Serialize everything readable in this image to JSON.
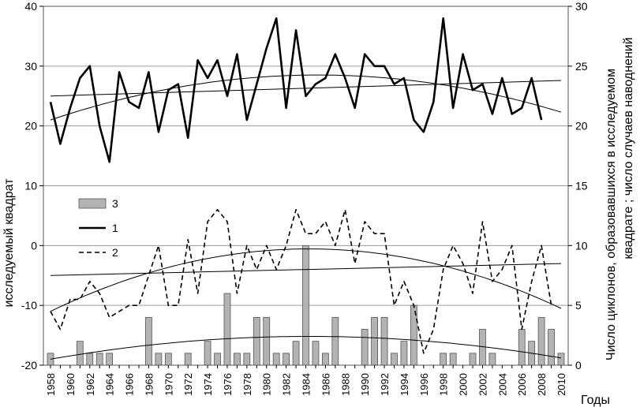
{
  "chart_data": {
    "type": "bar+line",
    "x": [
      1958,
      1959,
      1960,
      1961,
      1962,
      1963,
      1964,
      1965,
      1966,
      1967,
      1968,
      1969,
      1970,
      1971,
      1972,
      1973,
      1974,
      1975,
      1976,
      1977,
      1978,
      1979,
      1980,
      1981,
      1982,
      1983,
      1984,
      1985,
      1986,
      1987,
      1988,
      1989,
      1990,
      1991,
      1992,
      1993,
      1994,
      1995,
      1996,
      1997,
      1998,
      1999,
      2000,
      2001,
      2002,
      2003,
      2004,
      2005,
      2006,
      2007,
      2008,
      2009,
      2010
    ],
    "x_tick_labels": [
      "1958",
      "1960",
      "1962",
      "1964",
      "1966",
      "1968",
      "1970",
      "1972",
      "1974",
      "1976",
      "1978",
      "1980",
      "1982",
      "1984",
      "1986",
      "1988",
      "1990",
      "1992",
      "1994",
      "1996",
      "1998",
      "2000",
      "2002",
      "2004",
      "2006",
      "2008",
      "2010"
    ],
    "left_axis": {
      "label": "исследуемый квадрат",
      "ylim": [
        -20,
        40
      ],
      "ticks": [
        "-20",
        "-10",
        "0",
        "10",
        "20",
        "30",
        "40"
      ]
    },
    "right_axis": {
      "label_line1": "Число циклонов, образовавшихся в исследуемом",
      "label_line2": "квадрате ; число случаев наводнений",
      "ylim": [
        0,
        30
      ],
      "ticks": [
        "0",
        "5",
        "10",
        "15",
        "20",
        "25",
        "30"
      ]
    },
    "xlabel": "Годы",
    "legend": [
      {
        "key": "3",
        "label": "3",
        "kind": "bar"
      },
      {
        "key": "1",
        "label": "1",
        "kind": "solid-line"
      },
      {
        "key": "2",
        "label": "2",
        "kind": "dashed-line"
      }
    ],
    "series": [
      {
        "name": "1",
        "axis": "left",
        "style": "solid",
        "values": [
          24,
          17,
          23,
          28,
          30,
          20,
          14,
          29,
          24,
          23,
          29,
          19,
          26,
          27,
          18,
          31,
          28,
          31,
          25,
          32,
          21,
          27,
          33,
          38,
          23,
          36,
          25,
          27,
          28,
          32,
          28,
          23,
          32,
          30,
          30,
          27,
          28,
          21,
          19,
          24,
          38,
          23,
          32,
          26,
          27,
          22,
          28,
          22,
          23,
          28,
          21,
          null,
          null
        ]
      },
      {
        "name": "2",
        "axis": "left",
        "style": "dashed",
        "values": [
          -11,
          -14,
          -9,
          -9,
          -6,
          -8,
          -12,
          -11,
          -10,
          -10,
          -5,
          0,
          -10,
          -10,
          1,
          -8,
          4,
          6,
          4,
          -8,
          0,
          -4,
          0,
          -4,
          0,
          6,
          2,
          2,
          4,
          0,
          6,
          -3,
          4,
          2,
          2,
          -10,
          -6,
          -10,
          -18,
          -14,
          -4,
          0,
          -3,
          -8,
          4,
          -6,
          -4,
          0,
          -14,
          -6,
          0,
          -10,
          null
        ]
      },
      {
        "name": "3",
        "axis": "right",
        "style": "bar",
        "values": [
          1,
          0,
          0,
          2,
          1,
          1,
          1,
          0,
          0,
          0,
          4,
          1,
          1,
          0,
          1,
          0,
          2,
          1,
          6,
          1,
          1,
          4,
          4,
          1,
          1,
          2,
          10,
          2,
          1,
          4,
          0,
          0,
          3,
          4,
          4,
          1,
          2,
          5,
          0,
          0,
          1,
          1,
          0,
          1,
          3,
          1,
          0,
          0,
          3,
          2,
          4,
          3,
          1
        ]
      }
    ],
    "trends": [
      {
        "of": "1",
        "kind": "linear",
        "axis": "left",
        "from": [
          1958,
          25.0
        ],
        "to": [
          2010,
          27.6
        ]
      },
      {
        "of": "1",
        "kind": "quadratic",
        "axis": "left",
        "points": [
          [
            1958,
            21.0
          ],
          [
            1984,
            28.5
          ],
          [
            2010,
            22.3
          ]
        ]
      },
      {
        "of": "2",
        "kind": "linear",
        "axis": "left",
        "from": [
          1958,
          -5.0
        ],
        "to": [
          2010,
          -3.0
        ]
      },
      {
        "of": "2",
        "kind": "quadratic",
        "axis": "left",
        "points": [
          [
            1958,
            -11.0
          ],
          [
            1986,
            -0.6
          ],
          [
            2010,
            -10.5
          ]
        ]
      },
      {
        "of": "3",
        "kind": "quadratic",
        "axis": "right",
        "points": [
          [
            1958,
            0.5
          ],
          [
            1986,
            2.4
          ],
          [
            2010,
            0.6
          ]
        ]
      }
    ]
  }
}
